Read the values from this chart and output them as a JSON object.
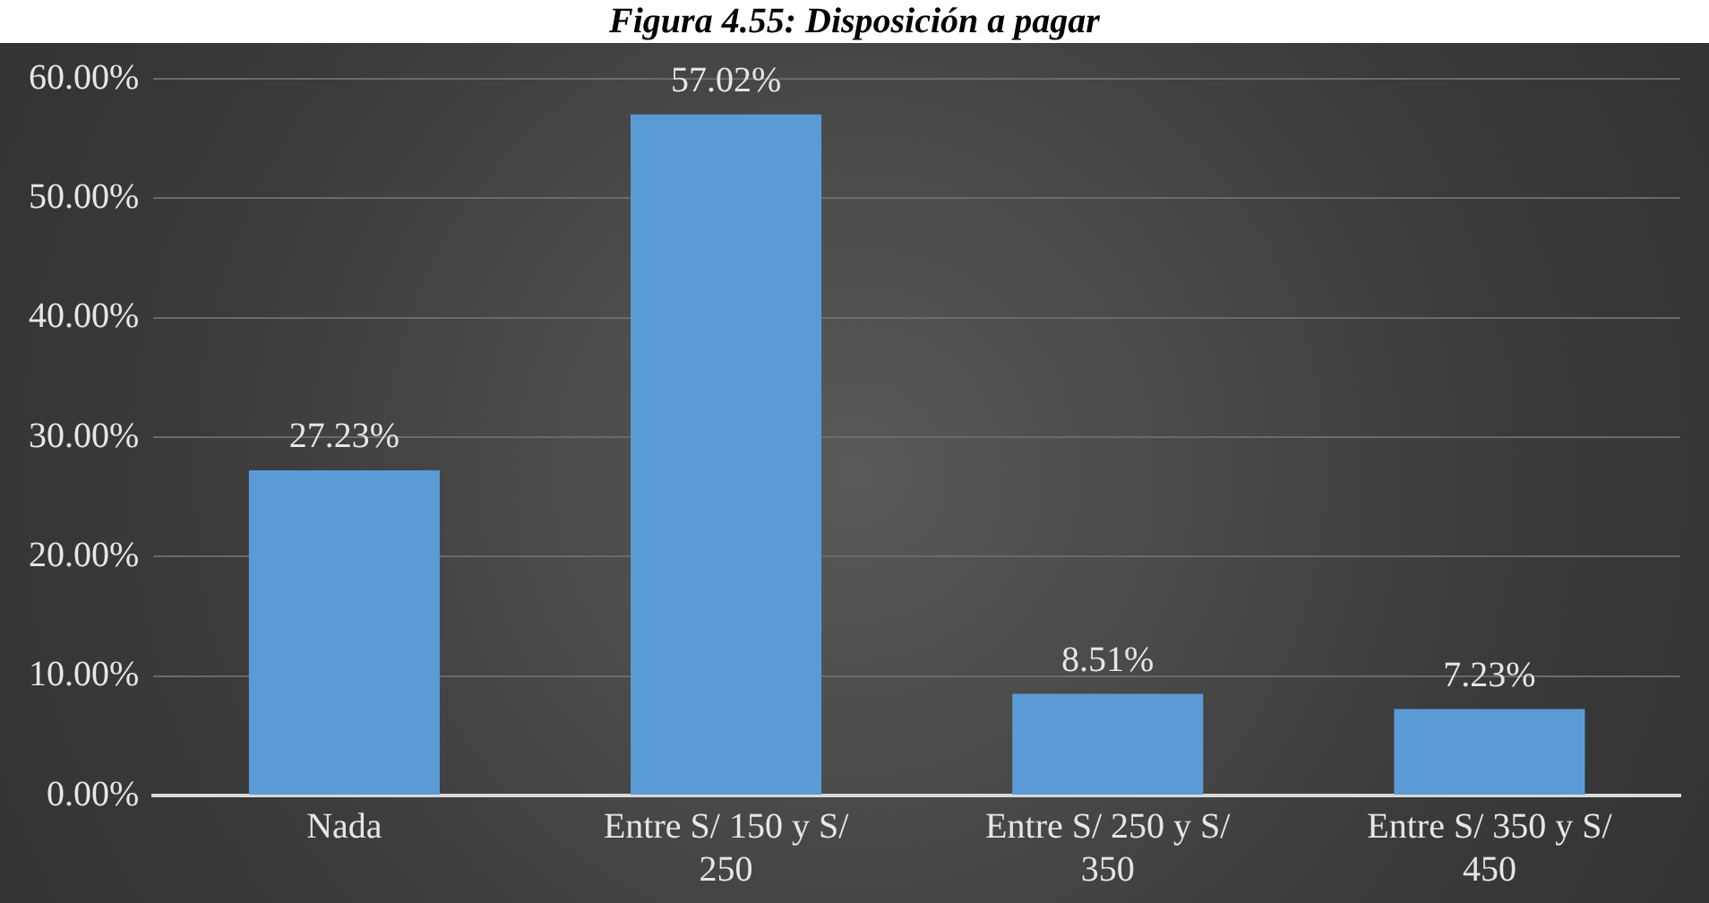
{
  "chart_data": {
    "type": "bar",
    "title": "Figura 4.55: Disposición a pagar",
    "categories": [
      "Nada",
      "Entre S/ 150 y S/ 250",
      "Entre S/ 250 y S/ 350",
      "Entre S/ 350 y S/ 450"
    ],
    "values": [
      27.23,
      57.02,
      8.51,
      7.23
    ],
    "value_labels": [
      "27.23%",
      "57.02%",
      "8.51%",
      "7.23%"
    ],
    "color": "#5b9bd5",
    "ylim": [
      0,
      60
    ],
    "yticks": [
      {
        "value": 0,
        "label": "0.00%"
      },
      {
        "value": 10,
        "label": "10.00%"
      },
      {
        "value": 20,
        "label": "20.00%"
      },
      {
        "value": 30,
        "label": "30.00%"
      },
      {
        "value": 40,
        "label": "40.00%"
      },
      {
        "value": 50,
        "label": "50.00%"
      },
      {
        "value": 60,
        "label": "60.00%"
      }
    ],
    "grid": "y",
    "legend": false
  }
}
